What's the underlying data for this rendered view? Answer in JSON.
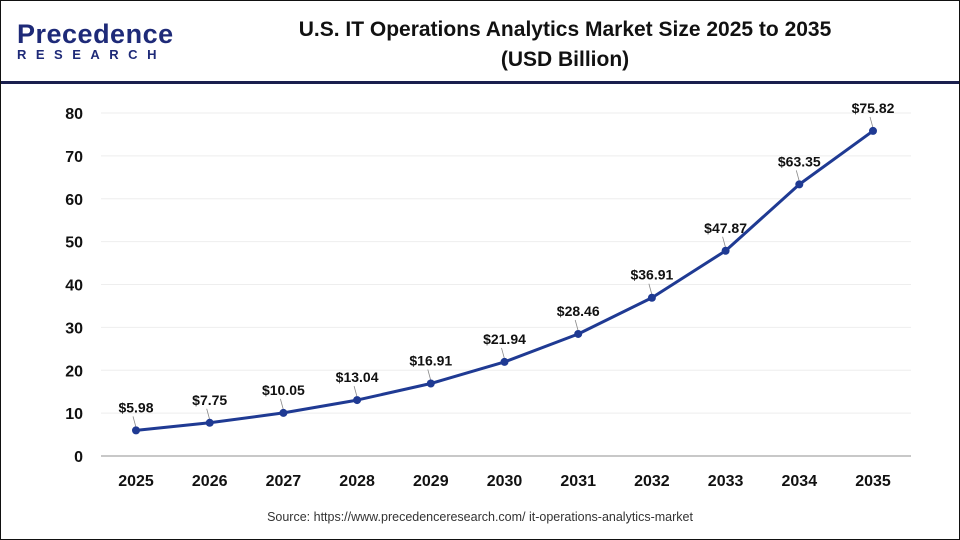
{
  "logo": {
    "line1": "Precedence",
    "line2": "RESEARCH"
  },
  "title_line1": "U.S. IT Operations Analytics Market Size 2025 to 2035",
  "title_line2": "(USD Billion)",
  "source": "Source: https://www.precedenceresearch.com/ it-operations-analytics-market",
  "chart_data": {
    "type": "line",
    "title": "U.S. IT Operations Analytics Market Size 2025 to 2035 (USD Billion)",
    "categories": [
      "2025",
      "2026",
      "2027",
      "2028",
      "2029",
      "2030",
      "2031",
      "2032",
      "2033",
      "2034",
      "2035"
    ],
    "values": [
      5.98,
      7.75,
      10.05,
      13.04,
      16.91,
      21.94,
      28.46,
      36.91,
      47.87,
      63.35,
      75.82
    ],
    "data_labels": [
      "$5.98",
      "$7.75",
      "$10.05",
      "$13.04",
      "$16.91",
      "$21.94",
      "$28.46",
      "$36.91",
      "$47.87",
      "$63.35",
      "$75.82"
    ],
    "yticks": [
      "0",
      "10",
      "20",
      "30",
      "40",
      "50",
      "60",
      "70",
      "80"
    ],
    "ylim": [
      0,
      80
    ],
    "grid": true,
    "line_color": "#1f3a93"
  }
}
